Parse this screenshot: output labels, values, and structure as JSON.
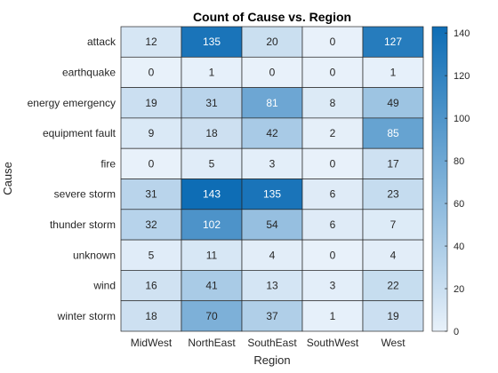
{
  "chart_data": {
    "type": "heatmap",
    "title": "Count of Cause vs. Region",
    "xlabel": "Region",
    "ylabel": "Cause",
    "x_categories": [
      "MidWest",
      "NorthEast",
      "SouthEast",
      "SouthWest",
      "West"
    ],
    "y_categories": [
      "attack",
      "earthquake",
      "energy emergency",
      "equipment fault",
      "fire",
      "severe storm",
      "thunder storm",
      "unknown",
      "wind",
      "winter storm"
    ],
    "values": [
      [
        12,
        135,
        20,
        0,
        127
      ],
      [
        0,
        1,
        0,
        0,
        1
      ],
      [
        19,
        31,
        81,
        8,
        49
      ],
      [
        9,
        18,
        42,
        2,
        85
      ],
      [
        0,
        5,
        3,
        0,
        17
      ],
      [
        31,
        143,
        135,
        6,
        23
      ],
      [
        32,
        102,
        54,
        6,
        7
      ],
      [
        5,
        11,
        4,
        0,
        4
      ],
      [
        16,
        41,
        13,
        3,
        22
      ],
      [
        18,
        70,
        37,
        1,
        19
      ]
    ],
    "color_range": [
      0,
      143
    ],
    "colormap": {
      "low": "#e8f1fa",
      "high": "#0e6db5"
    },
    "colorbar_ticks": [
      0,
      20,
      40,
      60,
      80,
      100,
      120,
      140
    ],
    "legend": "right"
  }
}
